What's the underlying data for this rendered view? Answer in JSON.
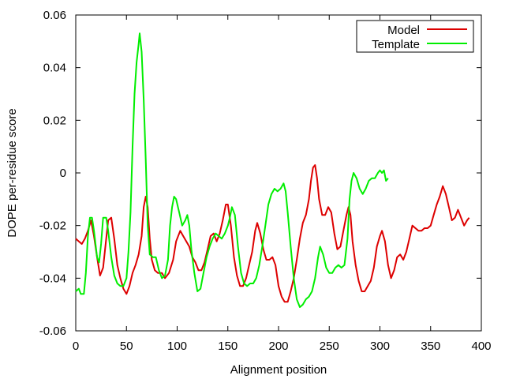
{
  "chart_data": {
    "type": "line",
    "title": "",
    "xlabel": "Alignment position",
    "ylabel": "DOPE per-residue score",
    "xlim": [
      0,
      400
    ],
    "ylim": [
      -0.06,
      0.06
    ],
    "x_ticks": [
      0,
      50,
      100,
      150,
      200,
      250,
      300,
      350,
      400
    ],
    "x_tick_labels": [
      "0",
      "50",
      "100",
      "150",
      "200",
      "250",
      "300",
      "350",
      "400"
    ],
    "y_ticks": [
      -0.06,
      -0.04,
      -0.02,
      0,
      0.02,
      0.04,
      0.06
    ],
    "y_tick_labels": [
      "-0.06",
      "-0.04",
      "-0.02",
      "0",
      "0.02",
      "0.04",
      "0.06"
    ],
    "grid": false,
    "legend_position": "top-right",
    "series": [
      {
        "name": "Model",
        "color": "#dd0000",
        "points": [
          [
            0,
            -0.025
          ],
          [
            3,
            -0.026
          ],
          [
            6,
            -0.027
          ],
          [
            9,
            -0.025
          ],
          [
            12,
            -0.022
          ],
          [
            15,
            -0.018
          ],
          [
            18,
            -0.024
          ],
          [
            21,
            -0.032
          ],
          [
            24,
            -0.039
          ],
          [
            27,
            -0.036
          ],
          [
            30,
            -0.025
          ],
          [
            32,
            -0.018
          ],
          [
            35,
            -0.017
          ],
          [
            38,
            -0.025
          ],
          [
            41,
            -0.035
          ],
          [
            44,
            -0.04
          ],
          [
            47,
            -0.044
          ],
          [
            50,
            -0.046
          ],
          [
            53,
            -0.043
          ],
          [
            56,
            -0.038
          ],
          [
            59,
            -0.035
          ],
          [
            62,
            -0.031
          ],
          [
            65,
            -0.024
          ],
          [
            67,
            -0.013
          ],
          [
            69,
            -0.009
          ],
          [
            71,
            -0.013
          ],
          [
            73,
            -0.025
          ],
          [
            75,
            -0.033
          ],
          [
            78,
            -0.037
          ],
          [
            81,
            -0.038
          ],
          [
            85,
            -0.038
          ],
          [
            88,
            -0.04
          ],
          [
            92,
            -0.038
          ],
          [
            96,
            -0.033
          ],
          [
            99,
            -0.026
          ],
          [
            103,
            -0.022
          ],
          [
            106,
            -0.024
          ],
          [
            109,
            -0.026
          ],
          [
            112,
            -0.028
          ],
          [
            115,
            -0.032
          ],
          [
            118,
            -0.034
          ],
          [
            121,
            -0.037
          ],
          [
            124,
            -0.037
          ],
          [
            127,
            -0.034
          ],
          [
            130,
            -0.029
          ],
          [
            133,
            -0.024
          ],
          [
            136,
            -0.023
          ],
          [
            139,
            -0.026
          ],
          [
            142,
            -0.023
          ],
          [
            145,
            -0.018
          ],
          [
            148,
            -0.012
          ],
          [
            150,
            -0.012
          ],
          [
            153,
            -0.02
          ],
          [
            156,
            -0.032
          ],
          [
            159,
            -0.039
          ],
          [
            162,
            -0.043
          ],
          [
            165,
            -0.043
          ],
          [
            168,
            -0.04
          ],
          [
            171,
            -0.035
          ],
          [
            174,
            -0.03
          ],
          [
            177,
            -0.022
          ],
          [
            179,
            -0.019
          ],
          [
            182,
            -0.023
          ],
          [
            185,
            -0.029
          ],
          [
            188,
            -0.033
          ],
          [
            191,
            -0.033
          ],
          [
            194,
            -0.032
          ],
          [
            197,
            -0.035
          ],
          [
            200,
            -0.043
          ],
          [
            203,
            -0.047
          ],
          [
            206,
            -0.049
          ],
          [
            209,
            -0.049
          ],
          [
            212,
            -0.045
          ],
          [
            215,
            -0.04
          ],
          [
            218,
            -0.033
          ],
          [
            221,
            -0.025
          ],
          [
            224,
            -0.019
          ],
          [
            227,
            -0.016
          ],
          [
            230,
            -0.01
          ],
          [
            232,
            -0.003
          ],
          [
            234,
            0.002
          ],
          [
            236,
            0.003
          ],
          [
            238,
            -0.002
          ],
          [
            240,
            -0.01
          ],
          [
            243,
            -0.016
          ],
          [
            246,
            -0.016
          ],
          [
            249,
            -0.013
          ],
          [
            252,
            -0.015
          ],
          [
            255,
            -0.023
          ],
          [
            258,
            -0.029
          ],
          [
            261,
            -0.028
          ],
          [
            264,
            -0.022
          ],
          [
            267,
            -0.016
          ],
          [
            269,
            -0.013
          ],
          [
            271,
            -0.016
          ],
          [
            273,
            -0.026
          ],
          [
            276,
            -0.035
          ],
          [
            279,
            -0.041
          ],
          [
            282,
            -0.045
          ],
          [
            285,
            -0.045
          ],
          [
            288,
            -0.043
          ],
          [
            291,
            -0.041
          ],
          [
            294,
            -0.036
          ],
          [
            297,
            -0.028
          ],
          [
            300,
            -0.024
          ],
          [
            302,
            -0.022
          ],
          [
            305,
            -0.026
          ],
          [
            308,
            -0.035
          ],
          [
            311,
            -0.04
          ],
          [
            314,
            -0.037
          ],
          [
            317,
            -0.032
          ],
          [
            320,
            -0.031
          ],
          [
            323,
            -0.033
          ],
          [
            326,
            -0.03
          ],
          [
            329,
            -0.025
          ],
          [
            332,
            -0.02
          ],
          [
            335,
            -0.021
          ],
          [
            338,
            -0.022
          ],
          [
            341,
            -0.022
          ],
          [
            344,
            -0.021
          ],
          [
            347,
            -0.021
          ],
          [
            350,
            -0.02
          ],
          [
            353,
            -0.016
          ],
          [
            356,
            -0.012
          ],
          [
            359,
            -0.009
          ],
          [
            362,
            -0.005
          ],
          [
            365,
            -0.008
          ],
          [
            368,
            -0.013
          ],
          [
            371,
            -0.018
          ],
          [
            374,
            -0.017
          ],
          [
            377,
            -0.014
          ],
          [
            380,
            -0.017
          ],
          [
            383,
            -0.02
          ],
          [
            386,
            -0.018
          ],
          [
            388,
            -0.017
          ]
        ]
      },
      {
        "name": "Template",
        "color": "#00ee00",
        "points": [
          [
            0,
            -0.045
          ],
          [
            3,
            -0.044
          ],
          [
            5,
            -0.046
          ],
          [
            8,
            -0.046
          ],
          [
            10,
            -0.038
          ],
          [
            12,
            -0.024
          ],
          [
            14,
            -0.017
          ],
          [
            16,
            -0.017
          ],
          [
            18,
            -0.022
          ],
          [
            21,
            -0.032
          ],
          [
            23,
            -0.034
          ],
          [
            25,
            -0.027
          ],
          [
            27,
            -0.017
          ],
          [
            30,
            -0.017
          ],
          [
            32,
            -0.022
          ],
          [
            35,
            -0.032
          ],
          [
            38,
            -0.039
          ],
          [
            41,
            -0.042
          ],
          [
            44,
            -0.043
          ],
          [
            47,
            -0.043
          ],
          [
            50,
            -0.04
          ],
          [
            52,
            -0.03
          ],
          [
            54,
            -0.015
          ],
          [
            56,
            0.01
          ],
          [
            58,
            0.03
          ],
          [
            60,
            0.042
          ],
          [
            62,
            0.049
          ],
          [
            63,
            0.053
          ],
          [
            65,
            0.046
          ],
          [
            67,
            0.028
          ],
          [
            69,
            0.005
          ],
          [
            71,
            -0.02
          ],
          [
            73,
            -0.031
          ],
          [
            76,
            -0.032
          ],
          [
            79,
            -0.032
          ],
          [
            82,
            -0.037
          ],
          [
            85,
            -0.04
          ],
          [
            88,
            -0.039
          ],
          [
            91,
            -0.033
          ],
          [
            93,
            -0.02
          ],
          [
            95,
            -0.013
          ],
          [
            97,
            -0.009
          ],
          [
            99,
            -0.01
          ],
          [
            102,
            -0.015
          ],
          [
            105,
            -0.02
          ],
          [
            108,
            -0.018
          ],
          [
            110,
            -0.016
          ],
          [
            112,
            -0.02
          ],
          [
            114,
            -0.029
          ],
          [
            117,
            -0.038
          ],
          [
            120,
            -0.045
          ],
          [
            123,
            -0.044
          ],
          [
            126,
            -0.038
          ],
          [
            129,
            -0.032
          ],
          [
            132,
            -0.028
          ],
          [
            135,
            -0.025
          ],
          [
            138,
            -0.023
          ],
          [
            141,
            -0.024
          ],
          [
            144,
            -0.025
          ],
          [
            147,
            -0.023
          ],
          [
            150,
            -0.02
          ],
          [
            152,
            -0.017
          ],
          [
            154,
            -0.013
          ],
          [
            157,
            -0.016
          ],
          [
            160,
            -0.028
          ],
          [
            163,
            -0.038
          ],
          [
            166,
            -0.042
          ],
          [
            169,
            -0.043
          ],
          [
            172,
            -0.042
          ],
          [
            175,
            -0.042
          ],
          [
            178,
            -0.04
          ],
          [
            181,
            -0.035
          ],
          [
            184,
            -0.028
          ],
          [
            187,
            -0.02
          ],
          [
            190,
            -0.012
          ],
          [
            193,
            -0.008
          ],
          [
            196,
            -0.006
          ],
          [
            199,
            -0.007
          ],
          [
            202,
            -0.006
          ],
          [
            205,
            -0.004
          ],
          [
            207,
            -0.007
          ],
          [
            209,
            -0.015
          ],
          [
            212,
            -0.028
          ],
          [
            215,
            -0.04
          ],
          [
            218,
            -0.048
          ],
          [
            221,
            -0.051
          ],
          [
            224,
            -0.05
          ],
          [
            227,
            -0.048
          ],
          [
            230,
            -0.047
          ],
          [
            233,
            -0.045
          ],
          [
            236,
            -0.04
          ],
          [
            239,
            -0.032
          ],
          [
            241,
            -0.028
          ],
          [
            244,
            -0.031
          ],
          [
            247,
            -0.036
          ],
          [
            250,
            -0.038
          ],
          [
            253,
            -0.038
          ],
          [
            256,
            -0.036
          ],
          [
            259,
            -0.035
          ],
          [
            262,
            -0.036
          ],
          [
            265,
            -0.035
          ],
          [
            268,
            -0.025
          ],
          [
            270,
            -0.01
          ],
          [
            272,
            -0.003
          ],
          [
            274,
            0.0
          ],
          [
            277,
            -0.002
          ],
          [
            280,
            -0.006
          ],
          [
            283,
            -0.008
          ],
          [
            286,
            -0.006
          ],
          [
            289,
            -0.003
          ],
          [
            292,
            -0.002
          ],
          [
            295,
            -0.002
          ],
          [
            298,
            0.0
          ],
          [
            300,
            0.001
          ],
          [
            302,
            0.0
          ],
          [
            304,
            0.001
          ],
          [
            306,
            -0.003
          ],
          [
            308,
            -0.002
          ]
        ]
      }
    ]
  }
}
